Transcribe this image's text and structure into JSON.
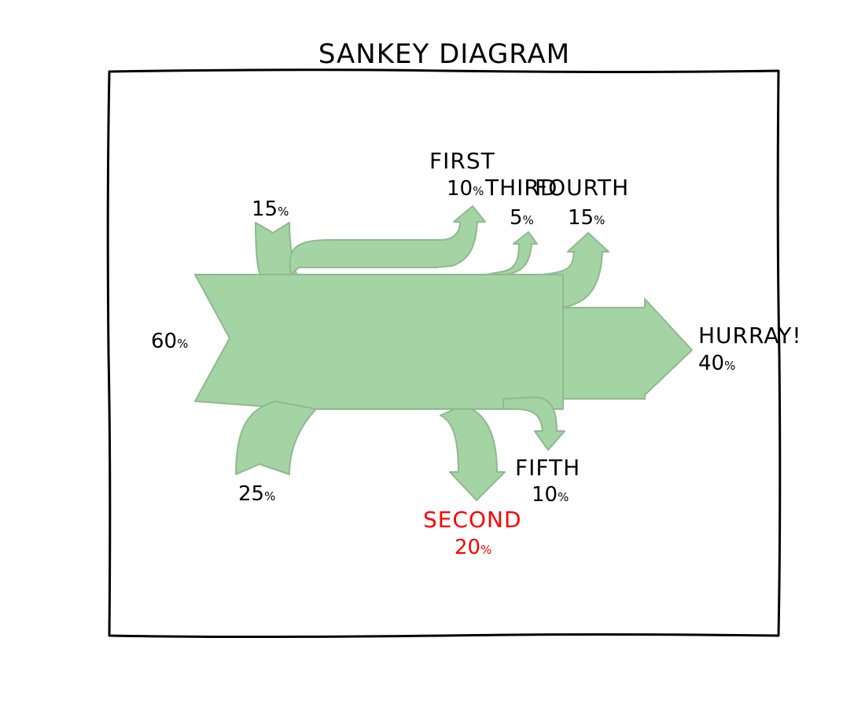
{
  "title": "SANKEY DIAGRAM",
  "colors": {
    "flow_fill": "#a4d3a4",
    "flow_stroke": "#8fb98f",
    "frame": "#000000",
    "text": "#000000",
    "highlight": "#ff0000"
  },
  "flows": {
    "input_main": {
      "value": "60",
      "unit": "%"
    },
    "input_top": {
      "value": "15",
      "unit": "%"
    },
    "input_bottom": {
      "value": "25",
      "unit": "%"
    },
    "first": {
      "name": "FIRST",
      "value": "10",
      "unit": "%"
    },
    "third": {
      "name": "THIRD",
      "value": "5",
      "unit": "%"
    },
    "fourth": {
      "name": "FOURTH",
      "value": "15",
      "unit": "%"
    },
    "hurray": {
      "name": "HURRAY!",
      "value": "40",
      "unit": "%"
    },
    "fifth": {
      "name": "FIFTH",
      "value": "10",
      "unit": "%"
    },
    "second": {
      "name": "SECOND",
      "value": "20",
      "unit": "%"
    }
  },
  "chart_data": {
    "type": "sankey",
    "title": "SANKEY DIAGRAM",
    "inputs": [
      {
        "value": 60,
        "label": "60%"
      },
      {
        "value": 15,
        "label": "15%"
      },
      {
        "value": 25,
        "label": "25%"
      }
    ],
    "outputs": [
      {
        "name": "FIRST",
        "value": 10
      },
      {
        "name": "THIRD",
        "value": 5
      },
      {
        "name": "FOURTH",
        "value": 15
      },
      {
        "name": "HURRAY!",
        "value": 40
      },
      {
        "name": "FIFTH",
        "value": 10
      },
      {
        "name": "SECOND",
        "value": 20,
        "highlight": true
      }
    ]
  }
}
